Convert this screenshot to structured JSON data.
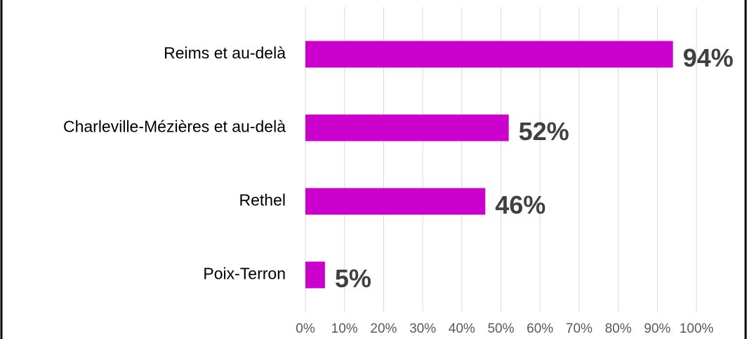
{
  "chart_data": {
    "type": "bar",
    "orientation": "horizontal",
    "categories": [
      "Reims et au-delà",
      "Charleville-Mézières et au-delà",
      "Rethel",
      "Poix-Terron"
    ],
    "values": [
      94,
      52,
      46,
      5
    ],
    "value_labels": [
      "94%",
      "52%",
      "46%",
      "5%"
    ],
    "color": "#cc00cc",
    "xlim": [
      0,
      100
    ],
    "xticks": [
      {
        "value": 0,
        "label": "0%"
      },
      {
        "value": 10,
        "label": "10%"
      },
      {
        "value": 20,
        "label": "20%"
      },
      {
        "value": 30,
        "label": "30%"
      },
      {
        "value": 40,
        "label": "40%"
      },
      {
        "value": 50,
        "label": "50%"
      },
      {
        "value": 60,
        "label": "60%"
      },
      {
        "value": 70,
        "label": "70%"
      },
      {
        "value": 80,
        "label": "80%"
      },
      {
        "value": 90,
        "label": "90%"
      },
      {
        "value": 100,
        "label": "100%"
      }
    ],
    "grid": true
  }
}
